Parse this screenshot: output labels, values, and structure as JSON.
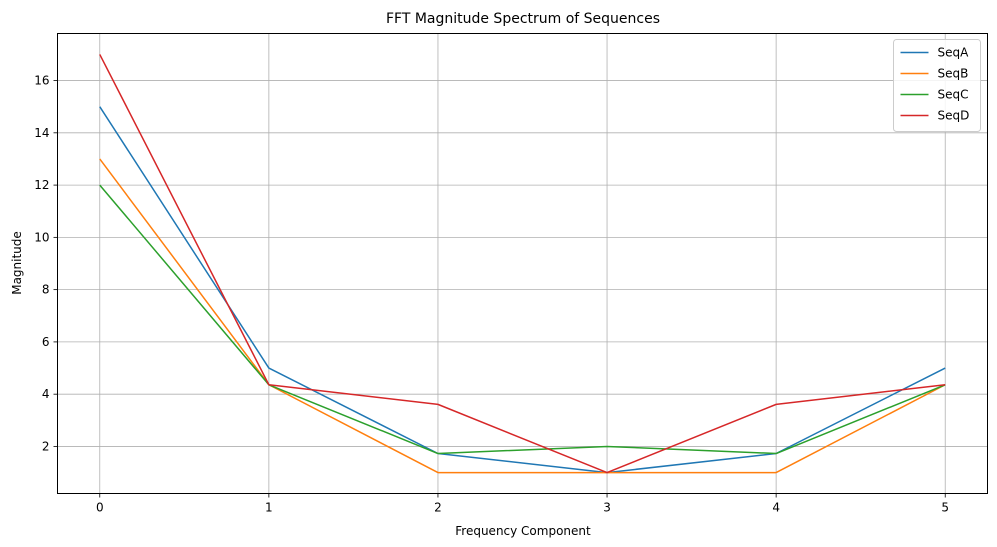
{
  "chart_data": {
    "type": "line",
    "title": "FFT Magnitude Spectrum of Sequences",
    "xlabel": "Frequency Component",
    "ylabel": "Magnitude",
    "x": [
      0,
      1,
      2,
      3,
      4,
      5
    ],
    "xticks": [
      "0",
      "1",
      "2",
      "3",
      "4",
      "5"
    ],
    "yticks": [
      2,
      4,
      6,
      8,
      10,
      12,
      14,
      16
    ],
    "xlim": [
      -0.25,
      5.25
    ],
    "ylim": [
      0.2,
      17.8
    ],
    "grid": true,
    "legend_position": "top-right",
    "series": [
      {
        "name": "SeqA",
        "color": "#1f77b4",
        "values": [
          15,
          5,
          1.73,
          1,
          1.73,
          5
        ]
      },
      {
        "name": "SeqB",
        "color": "#ff7f0e",
        "values": [
          13,
          4.36,
          1,
          1,
          1,
          4.36
        ]
      },
      {
        "name": "SeqC",
        "color": "#2ca02c",
        "values": [
          12,
          4.36,
          1.73,
          2,
          1.73,
          4.36
        ]
      },
      {
        "name": "SeqD",
        "color": "#d62728",
        "values": [
          17,
          4.36,
          3.61,
          1,
          3.61,
          4.36
        ]
      }
    ]
  }
}
